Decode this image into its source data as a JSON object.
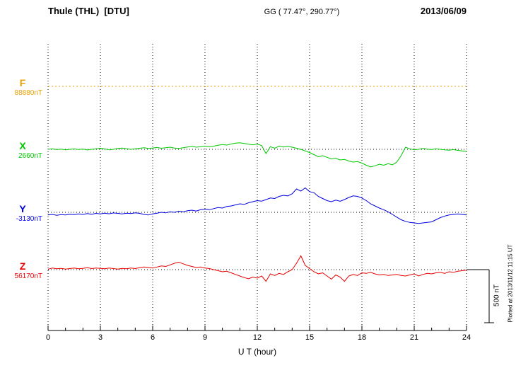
{
  "header": {
    "station": "Thule (THL)  [DTU]",
    "coords": "GG ( 77.47°, 290.77°)",
    "date": "2013/06/09"
  },
  "axis": {
    "xlabel": "U T (hour)"
  },
  "scalebar": {
    "label": "500 nT"
  },
  "plotted_note": "Plotted at 2013/11/12 11:15 UT",
  "chart_data": {
    "type": "line",
    "title": "Thule (THL) [DTU] magnetogram 2013/06/09",
    "xlabel": "U T (hour)",
    "x_start": 0,
    "x_end": 24,
    "x_step": 0.25,
    "x_ticks": [
      0,
      3,
      6,
      9,
      12,
      15,
      18,
      21,
      24
    ],
    "scale_bar_nT": 500,
    "grid": true,
    "series": [
      {
        "name": "F",
        "baseline_label": "88880nT",
        "color": "#e8a000",
        "style": "dotted",
        "values": [
          0,
          0
        ]
      },
      {
        "name": "X",
        "baseline_label": "2660nT",
        "color": "#00c800",
        "style": "solid",
        "values": [
          0,
          5,
          -3,
          2,
          -5,
          0,
          4,
          -2,
          3,
          -6,
          0,
          5,
          10,
          4,
          -5,
          0,
          8,
          12,
          6,
          0,
          5,
          10,
          15,
          8,
          12,
          18,
          10,
          15,
          20,
          12,
          8,
          15,
          22,
          28,
          20,
          25,
          30,
          24,
          30,
          38,
          45,
          40,
          50,
          58,
          62,
          55,
          48,
          42,
          50,
          35,
          -40,
          25,
          10,
          30,
          22,
          28,
          20,
          10,
          0,
          -15,
          -30,
          -50,
          -70,
          -60,
          -75,
          -90,
          -85,
          -100,
          -95,
          -110,
          -120,
          -115,
          -130,
          -150,
          -165,
          -155,
          -140,
          -150,
          -135,
          -145,
          -120,
          -60,
          20,
          5,
          -5,
          0,
          8,
          2,
          -3,
          5,
          0,
          -5,
          -8,
          -3,
          -10,
          -15,
          -20
        ]
      },
      {
        "name": "Y",
        "baseline_label": "-3130nT",
        "color": "#0000e0",
        "style": "solid",
        "values": [
          -25,
          -20,
          -28,
          -22,
          -25,
          -18,
          -22,
          -15,
          -20,
          -12,
          -18,
          -10,
          -15,
          -8,
          -14,
          -6,
          -10,
          -15,
          -8,
          -12,
          -5,
          -10,
          -20,
          -25,
          -15,
          -8,
          0,
          -5,
          5,
          0,
          10,
          5,
          15,
          20,
          12,
          25,
          30,
          25,
          35,
          45,
          40,
          55,
          60,
          70,
          80,
          75,
          90,
          100,
          110,
          105,
          120,
          135,
          130,
          150,
          160,
          155,
          175,
          220,
          200,
          230,
          195,
          185,
          150,
          130,
          110,
          100,
          115,
          105,
          120,
          140,
          155,
          150,
          135,
          110,
          80,
          60,
          40,
          25,
          5,
          -20,
          -45,
          -70,
          -85,
          -95,
          -100,
          -105,
          -100,
          -95,
          -90,
          -70,
          -50,
          -35,
          -25,
          -20,
          -15,
          -20,
          -25
        ]
      },
      {
        "name": "Z",
        "baseline_label": "56170nT",
        "color": "#e80000",
        "style": "solid",
        "values": [
          5,
          15,
          8,
          12,
          5,
          10,
          15,
          8,
          12,
          18,
          10,
          15,
          12,
          8,
          15,
          10,
          5,
          12,
          8,
          15,
          10,
          18,
          25,
          20,
          15,
          25,
          35,
          30,
          45,
          60,
          70,
          55,
          40,
          30,
          20,
          25,
          15,
          10,
          0,
          -10,
          -20,
          -15,
          -30,
          -45,
          -60,
          -75,
          -85,
          -70,
          -80,
          -60,
          -110,
          -40,
          -55,
          -35,
          -45,
          -20,
          0,
          60,
          130,
          40,
          10,
          -20,
          -40,
          -30,
          -60,
          -90,
          -50,
          -70,
          -110,
          -60,
          -45,
          -55,
          -30,
          -35,
          -25,
          -40,
          -50,
          -45,
          -55,
          -50,
          -45,
          -55,
          -60,
          -50,
          -40,
          -60,
          -45,
          -35,
          -40,
          -30,
          -25,
          -35,
          -20,
          -25,
          -15,
          -10,
          -5
        ]
      }
    ]
  }
}
